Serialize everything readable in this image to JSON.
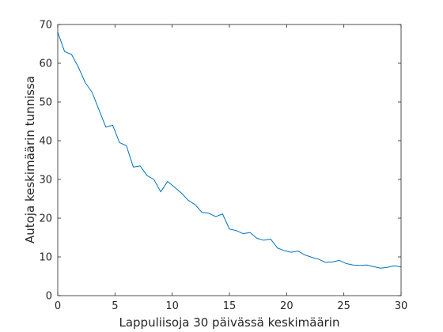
{
  "chart_data": {
    "type": "line",
    "title": "",
    "xlabel": "Lappuliisoja 30 päivässä keskimäärin",
    "ylabel": "Autoja keskimäärin tunnissa",
    "xlim": [
      0,
      30
    ],
    "ylim": [
      0,
      70
    ],
    "xticks": [
      0,
      5,
      10,
      15,
      20,
      25,
      30
    ],
    "yticks": [
      0,
      10,
      20,
      30,
      40,
      50,
      60,
      70
    ],
    "grid": false,
    "line_color": "#0072BD",
    "series": [
      {
        "x": [
          0,
          0.6,
          1.2,
          1.8,
          2.4,
          3.0,
          3.6,
          4.2,
          4.8,
          5.4,
          6.0,
          6.6,
          7.2,
          7.8,
          8.4,
          9.0,
          9.6,
          10.2,
          10.8,
          11.4,
          12.0,
          12.6,
          13.2,
          13.8,
          14.4,
          15.0,
          15.6,
          16.2,
          16.8,
          17.4,
          18.0,
          18.6,
          19.2,
          19.8,
          20.4,
          21.0,
          21.6,
          22.2,
          22.8,
          23.4,
          24.0,
          24.6,
          25.2,
          25.8,
          26.4,
          27.0,
          27.6,
          28.2,
          28.8,
          29.4,
          30.0
        ],
        "values": [
          68,
          63,
          62.3,
          59,
          55,
          52.5,
          48,
          43.5,
          44,
          39.5,
          38.7,
          33.2,
          33.5,
          31,
          30,
          26.8,
          29.5,
          28,
          26.5,
          24.6,
          23.5,
          21.5,
          21.3,
          20.4,
          21.1,
          17.2,
          16.8,
          16,
          16.3,
          14.8,
          14.3,
          14.6,
          12.3,
          11.6,
          11.2,
          11.5,
          10.5,
          9.9,
          9.4,
          8.6,
          8.7,
          9.1,
          8.3,
          7.9,
          7.8,
          7.9,
          7.5,
          7.1,
          7.3,
          7.7,
          7.4
        ]
      }
    ]
  }
}
